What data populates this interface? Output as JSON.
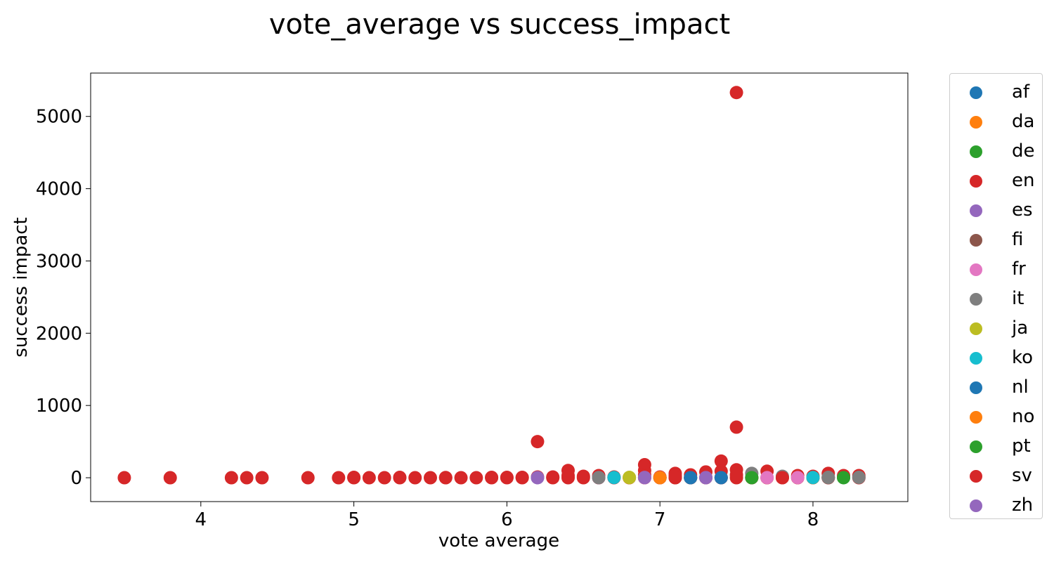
{
  "chart_data": {
    "type": "scatter",
    "title": "vote_average vs success_impact",
    "xlabel": "vote average",
    "ylabel": "success impact",
    "xlim": [
      3.28,
      8.62
    ],
    "ylim": [
      -330,
      5600
    ],
    "xticks": [
      4,
      5,
      6,
      7,
      8
    ],
    "yticks": [
      0,
      1000,
      2000,
      3000,
      4000,
      5000
    ],
    "grid": false,
    "legend_placement": "outside right",
    "series": [
      {
        "name": "af",
        "color": "#1f77b4",
        "points": [
          [
            7.2,
            2
          ],
          [
            7.4,
            3
          ]
        ]
      },
      {
        "name": "da",
        "color": "#ff7f0e",
        "points": [
          [
            7.0,
            2
          ],
          [
            8.0,
            1
          ]
        ]
      },
      {
        "name": "de",
        "color": "#2ca02c",
        "points": [
          [
            7.6,
            3
          ],
          [
            8.2,
            2
          ],
          [
            7.0,
            1
          ]
        ]
      },
      {
        "name": "en",
        "color": "#d62728",
        "points": [
          [
            3.5,
            0
          ],
          [
            3.8,
            0
          ],
          [
            4.2,
            0
          ],
          [
            4.3,
            0
          ],
          [
            4.4,
            0
          ],
          [
            4.7,
            0
          ],
          [
            4.9,
            0
          ],
          [
            5.0,
            0
          ],
          [
            5.1,
            0
          ],
          [
            5.2,
            0
          ],
          [
            5.3,
            0
          ],
          [
            5.4,
            0
          ],
          [
            5.5,
            0
          ],
          [
            5.6,
            0
          ],
          [
            5.7,
            0
          ],
          [
            5.8,
            0
          ],
          [
            5.9,
            0
          ],
          [
            6.0,
            0
          ],
          [
            6.1,
            0
          ],
          [
            5.0,
            5
          ],
          [
            5.3,
            5
          ],
          [
            5.6,
            3
          ],
          [
            5.9,
            5
          ],
          [
            6.0,
            5
          ],
          [
            6.1,
            5
          ],
          [
            6.2,
            500
          ],
          [
            6.2,
            10
          ],
          [
            6.3,
            0
          ],
          [
            6.3,
            10
          ],
          [
            6.4,
            0
          ],
          [
            6.4,
            30
          ],
          [
            6.4,
            100
          ],
          [
            6.5,
            0
          ],
          [
            6.5,
            20
          ],
          [
            6.6,
            0
          ],
          [
            6.6,
            30
          ],
          [
            6.7,
            0
          ],
          [
            6.7,
            10
          ],
          [
            6.8,
            0
          ],
          [
            6.9,
            0
          ],
          [
            6.9,
            100
          ],
          [
            6.9,
            180
          ],
          [
            6.9,
            40
          ],
          [
            7.0,
            0
          ],
          [
            7.0,
            10
          ],
          [
            7.1,
            0
          ],
          [
            7.1,
            30
          ],
          [
            7.1,
            60
          ],
          [
            7.2,
            0
          ],
          [
            7.2,
            40
          ],
          [
            7.3,
            0
          ],
          [
            7.3,
            80
          ],
          [
            7.4,
            0
          ],
          [
            7.4,
            230
          ],
          [
            7.4,
            90
          ],
          [
            7.5,
            0
          ],
          [
            7.5,
            5330
          ],
          [
            7.5,
            700
          ],
          [
            7.5,
            110
          ],
          [
            7.5,
            40
          ],
          [
            7.6,
            0
          ],
          [
            7.7,
            0
          ],
          [
            7.7,
            90
          ],
          [
            7.8,
            0
          ],
          [
            7.9,
            0
          ],
          [
            7.9,
            30
          ],
          [
            8.0,
            0
          ],
          [
            8.0,
            20
          ],
          [
            8.1,
            0
          ],
          [
            8.1,
            60
          ],
          [
            8.2,
            30
          ],
          [
            8.3,
            0
          ],
          [
            8.3,
            30
          ]
        ]
      },
      {
        "name": "es",
        "color": "#9467bd",
        "points": [
          [
            6.2,
            2
          ],
          [
            6.6,
            2
          ],
          [
            6.9,
            3
          ],
          [
            7.3,
            2
          ]
        ]
      },
      {
        "name": "fi",
        "color": "#8c564b",
        "points": [
          [
            7.2,
            1
          ],
          [
            8.1,
            2
          ]
        ]
      },
      {
        "name": "fr",
        "color": "#e377c2",
        "points": [
          [
            7.0,
            2
          ],
          [
            7.7,
            2
          ],
          [
            7.9,
            2
          ],
          [
            6.9,
            1
          ]
        ]
      },
      {
        "name": "it",
        "color": "#7f7f7f",
        "points": [
          [
            7.6,
            60
          ],
          [
            7.8,
            20
          ],
          [
            8.1,
            5
          ],
          [
            8.3,
            5
          ],
          [
            6.6,
            2
          ]
        ]
      },
      {
        "name": "ja",
        "color": "#bcbd22",
        "points": [
          [
            6.8,
            2
          ],
          [
            6.8,
            5
          ],
          [
            8.0,
            2
          ]
        ]
      },
      {
        "name": "ko",
        "color": "#17becf",
        "points": [
          [
            6.7,
            3
          ],
          [
            8.0,
            3
          ]
        ]
      },
      {
        "name": "nl",
        "color": "#1f77b4",
        "points": [
          [
            7.2,
            1
          ],
          [
            7.4,
            1
          ]
        ]
      },
      {
        "name": "no",
        "color": "#ff7f0e",
        "points": [
          [
            7.0,
            1
          ]
        ]
      },
      {
        "name": "pt",
        "color": "#2ca02c",
        "points": [
          [
            7.6,
            1
          ],
          [
            8.2,
            1
          ]
        ]
      },
      {
        "name": "sv",
        "color": "#d62728",
        "points": [
          [
            7.1,
            1
          ],
          [
            7.8,
            1
          ]
        ]
      },
      {
        "name": "zh",
        "color": "#9467bd",
        "points": [
          [
            6.2,
            1
          ],
          [
            6.9,
            2
          ],
          [
            7.3,
            1
          ]
        ]
      }
    ]
  }
}
